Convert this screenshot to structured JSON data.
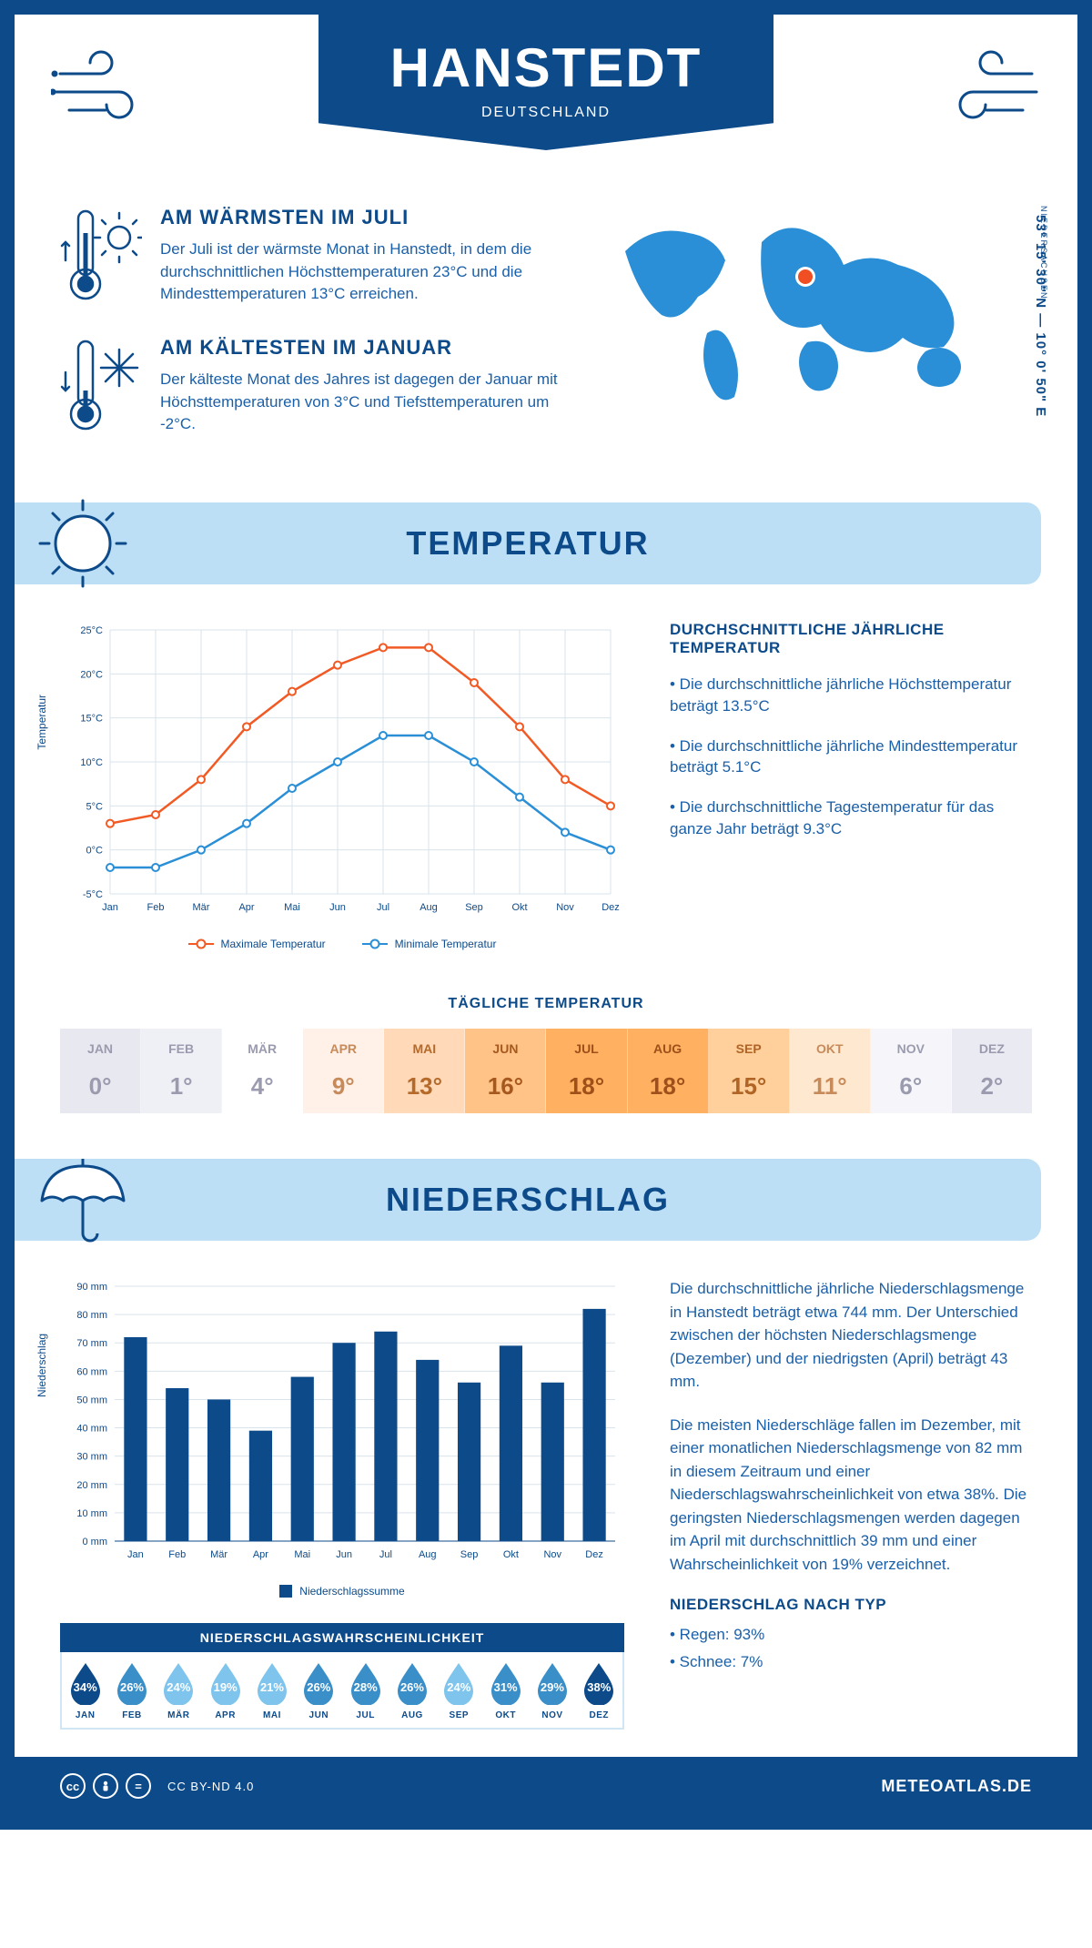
{
  "header": {
    "city": "HANSTEDT",
    "country": "DEUTSCHLAND",
    "region": "NIEDERSACHSEN",
    "coords": "53° 15' 30\" N — 10° 0' 50\" E"
  },
  "warmest": {
    "title": "AM WÄRMSTEN IM JULI",
    "body": "Der Juli ist der wärmste Monat in Hanstedt, in dem die durchschnittlichen Höchsttemperaturen 23°C und die Mindesttemperaturen 13°C erreichen."
  },
  "coldest": {
    "title": "AM KÄLTESTEN IM JANUAR",
    "body": "Der kälteste Monat des Jahres ist dagegen der Januar mit Höchsttemperaturen von 3°C und Tiefsttemperaturen um -2°C."
  },
  "temp_section_title": "TEMPERATUR",
  "temp_chart": {
    "type": "line",
    "months": [
      "Jan",
      "Feb",
      "Mär",
      "Apr",
      "Mai",
      "Jun",
      "Jul",
      "Aug",
      "Sep",
      "Okt",
      "Nov",
      "Dez"
    ],
    "max_series": [
      3,
      4,
      8,
      14,
      18,
      21,
      23,
      23,
      19,
      14,
      8,
      5
    ],
    "min_series": [
      -2,
      -2,
      0,
      3,
      7,
      10,
      13,
      13,
      10,
      6,
      2,
      0
    ],
    "ylim": [
      -5,
      25
    ],
    "ytick_step": 5,
    "y_axis_label": "Temperatur",
    "max_color": "#f15a24",
    "min_color": "#2a8fd6",
    "grid_color": "#d9e3ec",
    "axis_color": "#0c4a8a",
    "legend_max": "Maximale Temperatur",
    "legend_min": "Minimale Temperatur"
  },
  "annual_temp": {
    "heading": "DURCHSCHNITTLICHE JÄHRLICHE TEMPERATUR",
    "bullets": [
      "• Die durchschnittliche jährliche Höchsttemperatur beträgt 13.5°C",
      "• Die durchschnittliche jährliche Mindesttemperatur beträgt 5.1°C",
      "• Die durchschnittliche Tagestemperatur für das ganze Jahr beträgt 9.3°C"
    ]
  },
  "daily_temp": {
    "title": "TÄGLICHE TEMPERATUR",
    "months": [
      "JAN",
      "FEB",
      "MÄR",
      "APR",
      "MAI",
      "JUN",
      "JUL",
      "AUG",
      "SEP",
      "OKT",
      "NOV",
      "DEZ"
    ],
    "values": [
      "0°",
      "1°",
      "4°",
      "9°",
      "13°",
      "16°",
      "18°",
      "18°",
      "15°",
      "11°",
      "6°",
      "2°"
    ],
    "bg_colors": [
      "#e8e8f0",
      "#efeff6",
      "#ffffff",
      "#fff0e8",
      "#ffd9b8",
      "#ffc388",
      "#ffb060",
      "#ffb060",
      "#ffcf9c",
      "#ffe8d0",
      "#f6f6fa",
      "#eaeaf2"
    ],
    "text_colors": [
      "#9b9bb0",
      "#9b9bb0",
      "#9b9bb0",
      "#c78a5a",
      "#b56a2a",
      "#a6591f",
      "#9e501a",
      "#9e501a",
      "#b06425",
      "#c78a5a",
      "#9b9bb0",
      "#9b9bb0"
    ]
  },
  "precip_section_title": "NIEDERSCHLAG",
  "precip_chart": {
    "type": "bar",
    "months": [
      "Jan",
      "Feb",
      "Mär",
      "Apr",
      "Mai",
      "Jun",
      "Jul",
      "Aug",
      "Sep",
      "Okt",
      "Nov",
      "Dez"
    ],
    "values": [
      72,
      54,
      50,
      39,
      58,
      70,
      74,
      64,
      56,
      69,
      56,
      82
    ],
    "ylim": [
      0,
      90
    ],
    "ytick_step": 10,
    "bar_color": "#0c4a8a",
    "grid_color": "#d9e3ec",
    "y_axis_label": "Niederschlag",
    "legend": "Niederschlagssumme"
  },
  "precip_text": {
    "p1": "Die durchschnittliche jährliche Niederschlagsmenge in Hanstedt beträgt etwa 744 mm. Der Unterschied zwischen der höchsten Niederschlagsmenge (Dezember) und der niedrigsten (April) beträgt 43 mm.",
    "p2": "Die meisten Niederschläge fallen im Dezember, mit einer monatlichen Niederschlagsmenge von 82 mm in diesem Zeitraum und einer Niederschlagswahrscheinlichkeit von etwa 38%. Die geringsten Niederschlagsmengen werden dagegen im April mit durchschnittlich 39 mm und einer Wahrscheinlichkeit von 19% verzeichnet.",
    "type_heading": "NIEDERSCHLAG NACH TYP",
    "type_rain": "• Regen: 93%",
    "type_snow": "• Schnee: 7%"
  },
  "precip_prob": {
    "title": "NIEDERSCHLAGSWAHRSCHEINLICHKEIT",
    "months": [
      "JAN",
      "FEB",
      "MÄR",
      "APR",
      "MAI",
      "JUN",
      "JUL",
      "AUG",
      "SEP",
      "OKT",
      "NOV",
      "DEZ"
    ],
    "values": [
      34,
      26,
      24,
      19,
      21,
      26,
      28,
      26,
      24,
      31,
      29,
      38
    ],
    "scale_colors": {
      "low": "#7fc4ec",
      "mid": "#3a8fc9",
      "high": "#0c4a8a"
    }
  },
  "footer": {
    "license": "CC BY-ND 4.0",
    "site": "METEOATLAS.DE"
  },
  "palette": {
    "primary": "#0c4a8a",
    "light_blue": "#bcdff6",
    "map_blue": "#2a8fd6",
    "marker": "#f04e23"
  }
}
